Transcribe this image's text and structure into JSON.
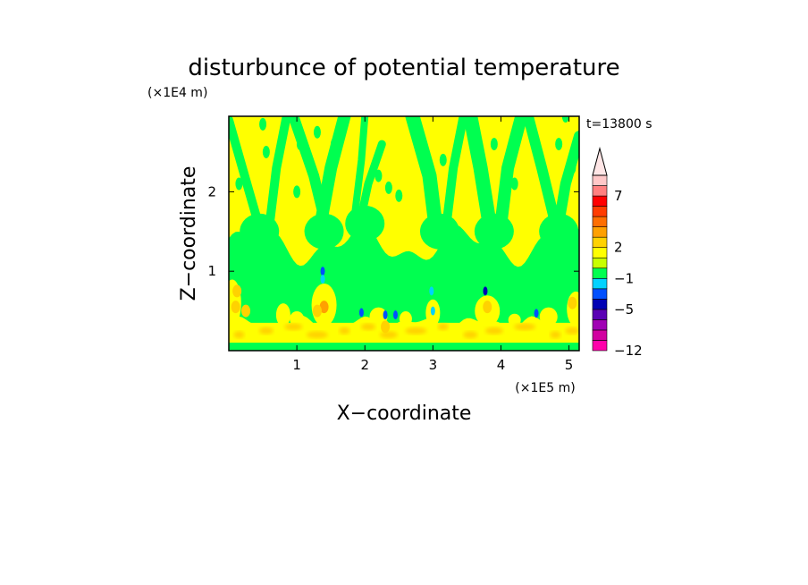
{
  "chart_data": {
    "type": "heatmap",
    "title": "disturbunce of potential temperature",
    "time_label": "t=13800 s",
    "xlabel": "X−coordinate",
    "ylabel": "Z−coordinate",
    "x_unit": "(×1E5 m)",
    "y_unit": "(×1E4 m)",
    "xlim": [
      0,
      5.15
    ],
    "ylim": [
      0,
      2.95
    ],
    "x_ticks": [
      1,
      2,
      3,
      4,
      5
    ],
    "y_ticks": [
      1,
      2
    ],
    "colorbar": {
      "colors": [
        "#ff00aa",
        "#d200a0",
        "#a000b4",
        "#5a00b4",
        "#0000b4",
        "#0050ff",
        "#00d2ff",
        "#00ff50",
        "#c8ff00",
        "#ffff00",
        "#ffd200",
        "#ffa000",
        "#ff6e00",
        "#ff3c00",
        "#ff0000",
        "#ff8080",
        "#ffc8c8"
      ],
      "extend_top_color": "#ffe6e6",
      "tick_labels": [
        "−12",
        "−5",
        "−1",
        "2",
        "7"
      ],
      "tick_levels": [
        0,
        4,
        7,
        10,
        15
      ]
    },
    "field_colors": {
      "background": "#ffff00",
      "neutral": "#00ff50",
      "warm": "#ffd200",
      "warm_strong": "#ffa000",
      "cool": "#00d2ff",
      "cold": "#0050ff",
      "cold_strong": "#0000b4"
    },
    "regions": {
      "upper_green_band_z": [
        0.75,
        1.45
      ],
      "lower_yellow_layer_z": [
        0.08,
        0.35
      ],
      "surface_green_z": [
        0.0,
        0.1
      ],
      "columns_x": [
        0.8,
        1.5,
        2.2,
        3.3,
        4.0,
        4.7
      ]
    },
    "spots": [
      {
        "x": 1.38,
        "z": 1.0,
        "level": "cold"
      },
      {
        "x": 1.38,
        "z": 0.9,
        "level": "cool"
      },
      {
        "x": 3.77,
        "z": 0.75,
        "level": "cold_strong"
      },
      {
        "x": 4.52,
        "z": 0.47,
        "level": "cold"
      },
      {
        "x": 1.95,
        "z": 0.48,
        "level": "cold"
      },
      {
        "x": 2.3,
        "z": 0.45,
        "level": "cold"
      },
      {
        "x": 2.45,
        "z": 0.45,
        "level": "cold"
      },
      {
        "x": 2.98,
        "z": 0.75,
        "level": "cool"
      },
      {
        "x": 3.0,
        "z": 0.5,
        "level": "cool"
      },
      {
        "x": 0.1,
        "z": 0.55,
        "level": "warm"
      },
      {
        "x": 0.12,
        "z": 0.75,
        "level": "warm"
      },
      {
        "x": 1.4,
        "z": 0.55,
        "level": "warm_strong"
      },
      {
        "x": 1.3,
        "z": 0.5,
        "level": "warm"
      },
      {
        "x": 0.25,
        "z": 0.5,
        "level": "warm"
      },
      {
        "x": 3.8,
        "z": 0.55,
        "level": "warm"
      },
      {
        "x": 2.3,
        "z": 0.3,
        "level": "warm"
      },
      {
        "x": 5.05,
        "z": 0.6,
        "level": "warm"
      }
    ]
  }
}
